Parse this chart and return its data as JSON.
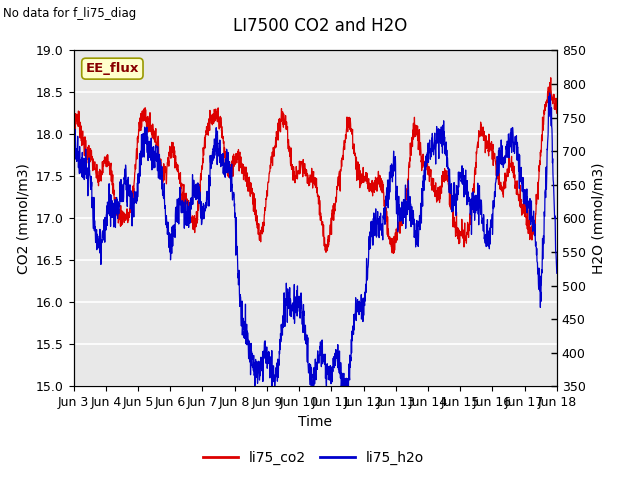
{
  "title": "LI7500 CO2 and H2O",
  "top_left_text": "No data for f_li75_diag",
  "xlabel": "Time",
  "ylabel_left": "CO2 (mmol/m3)",
  "ylabel_right": "H2O (mmol/m3)",
  "ylim_left": [
    15.0,
    19.0
  ],
  "ylim_right": [
    350,
    850
  ],
  "xtick_labels": [
    "Jun 3",
    "Jun 4",
    "Jun 5",
    "Jun 6",
    "Jun 7",
    "Jun 8",
    "Jun 9",
    "Jun 10",
    "Jun 11",
    "Jun 12",
    "Jun 13",
    "Jun 14",
    "Jun 15",
    "Jun 16",
    "Jun 17",
    "Jun 18"
  ],
  "ee_flux_label": "EE_flux",
  "ee_flux_bg": "#ffffcc",
  "ee_flux_border": "#999900",
  "ee_flux_text_color": "#880000",
  "legend_co2_label": "li75_co2",
  "legend_h2o_label": "li75_h2o",
  "co2_color": "#dd0000",
  "h2o_color": "#0000cc",
  "plot_bg_color": "#e8e8e8",
  "fig_bg_color": "#ffffff",
  "grid_color": "#ffffff",
  "title_fontsize": 12,
  "label_fontsize": 10,
  "tick_fontsize": 9,
  "legend_fontsize": 10,
  "n_points": 2000
}
